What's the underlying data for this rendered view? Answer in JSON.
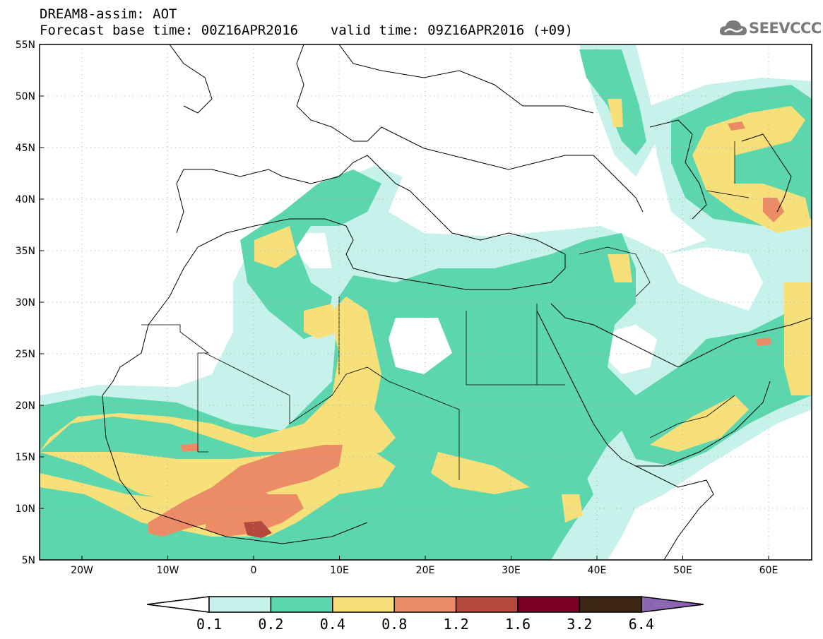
{
  "header": {
    "title_line1": "DREAM8-assim: AOT",
    "title_line2": "Forecast base time: 00Z16APR2016    valid time: 09Z16APR2016 (+09)"
  },
  "logo": {
    "text": "SEEVCCC",
    "icon": "cloud-icon"
  },
  "map": {
    "lat_ticks": [
      "55N",
      "50N",
      "45N",
      "40N",
      "35N",
      "30N",
      "25N",
      "20N",
      "15N",
      "10N",
      "5N"
    ],
    "lon_ticks": [
      "20W",
      "10W",
      "0",
      "10E",
      "20E",
      "30E",
      "40E",
      "50E",
      "60E"
    ],
    "extent": {
      "lon": [
        -25,
        65
      ],
      "lat": [
        5,
        55
      ]
    }
  },
  "colorbar": {
    "labels": [
      "0.1",
      "0.2",
      "0.4",
      "0.8",
      "1.2",
      "1.6",
      "3.2",
      "6.4"
    ],
    "colors": [
      "#c7f2ec",
      "#5cd6ad",
      "#f7e079",
      "#eb8c66",
      "#b5493d",
      "#7a0026",
      "#3d2614",
      "#8c66b3"
    ]
  },
  "colors": {
    "lev1": "#c7f2ec",
    "lev2": "#5cd6ad",
    "lev3": "#f7e079",
    "lev4": "#eb8c66",
    "lev5": "#c85c46"
  }
}
